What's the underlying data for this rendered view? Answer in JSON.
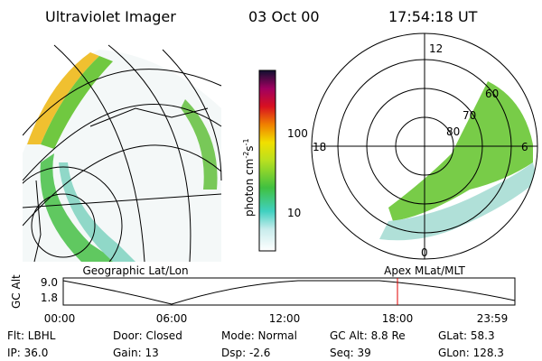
{
  "header": {
    "title": "Ultraviolet Imager",
    "date": "03 Oct 00",
    "time": "17:54:18 UT"
  },
  "colorbar": {
    "unit_main": "photon cm",
    "unit_exp1": "-2",
    "unit_s": "s",
    "unit_exp2": "-1",
    "ticks": [
      "100",
      "10"
    ]
  },
  "polar": {
    "mlt_labels": [
      "12",
      "18",
      "6",
      "0"
    ],
    "lat_labels": [
      "60",
      "70",
      "80"
    ]
  },
  "altitude": {
    "left_title": "Geographic Lat/Lon",
    "right_title": "Apex MLat/MLT",
    "axis_label": "GC Alt",
    "yticks": [
      "9.0",
      "1.8"
    ],
    "xticks": [
      "00:00",
      "06:00",
      "12:00",
      "18:00",
      "23:59"
    ]
  },
  "info": [
    [
      "Flt: LBHL",
      "IP: 36.0"
    ],
    [
      "Door: Closed",
      "Gain: 13"
    ],
    [
      "Mode: Normal",
      "Dsp: -2.6"
    ],
    [
      "GC Alt: 8.8 Re",
      "Seq: 39"
    ],
    [
      "GLat: 58.3",
      "GLon: 128.3"
    ]
  ]
}
